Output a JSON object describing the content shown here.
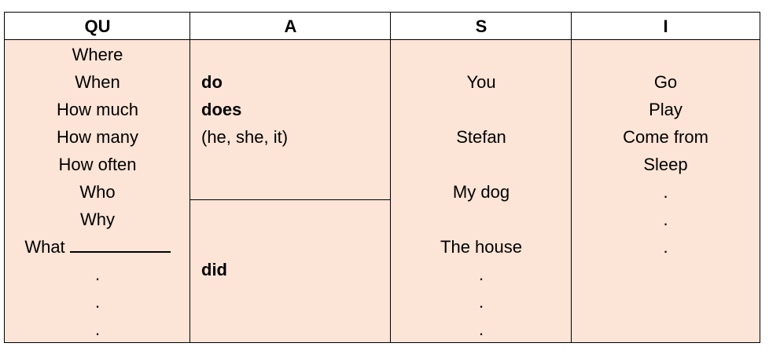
{
  "headers": [
    "QU",
    "A",
    "S",
    "I"
  ],
  "qu": [
    "Where",
    "When",
    "How much",
    "How many",
    "How often",
    "Who",
    "Why",
    "What",
    ".",
    ".",
    "."
  ],
  "a": {
    "top": [
      "do",
      "does",
      "(he, she, it)"
    ],
    "bottom": "did"
  },
  "s": [
    "You",
    "Stefan",
    "My dog",
    "The house",
    ".",
    ".",
    "."
  ],
  "i": [
    "Go",
    "Play",
    "Come from",
    "Sleep",
    ".",
    ".",
    "."
  ],
  "colors": {
    "fill": "#fce4d6",
    "border": "#000000"
  }
}
